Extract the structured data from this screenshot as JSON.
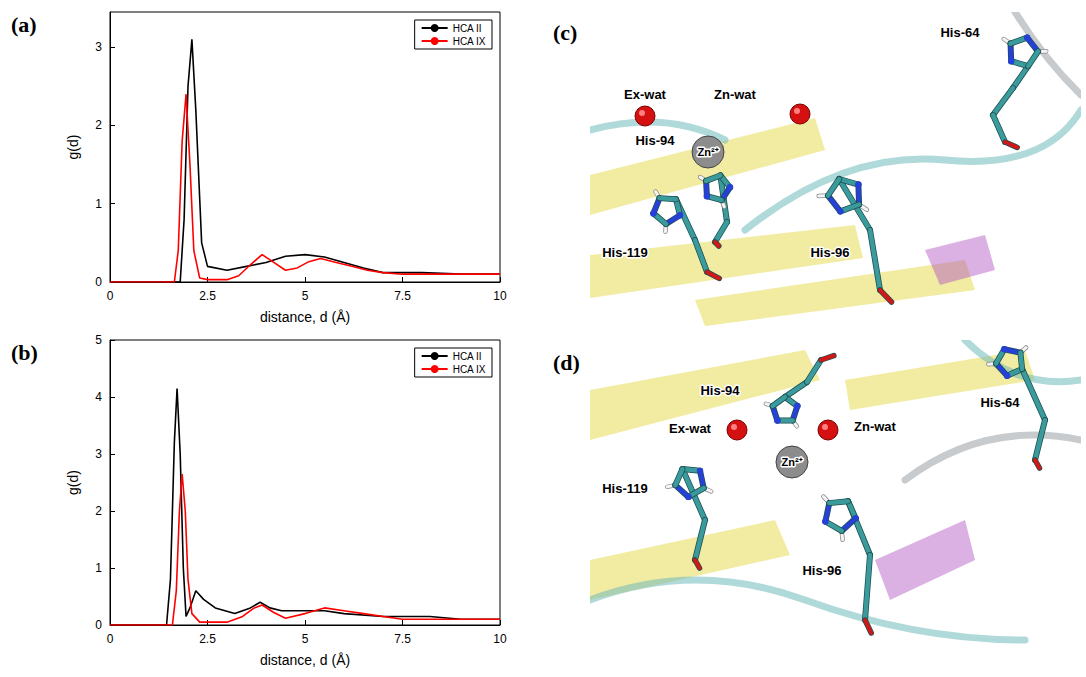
{
  "chart_data": [
    {
      "panel_label": "(a)",
      "type": "line",
      "x_label": "distance, d (Å)",
      "y_label": "g(d)",
      "xlim": [
        0,
        10
      ],
      "ylim": [
        0,
        3.45
      ],
      "xticks": [
        0,
        2.5,
        5,
        7.5,
        10
      ],
      "yticks": [
        0,
        1,
        2,
        3
      ],
      "grid": false,
      "legend": "upper right",
      "series": [
        {
          "name": "HCA II",
          "color": "#000000",
          "x": [
            0,
            1.8,
            1.9,
            2.0,
            2.1,
            2.2,
            2.35,
            2.5,
            3,
            3.5,
            4,
            4.5,
            5,
            5.5,
            6,
            6.5,
            7,
            8,
            9,
            10
          ],
          "values": [
            0,
            0,
            0.8,
            2.5,
            3.1,
            2.2,
            0.5,
            0.2,
            0.15,
            0.2,
            0.25,
            0.33,
            0.35,
            0.32,
            0.25,
            0.18,
            0.12,
            0.12,
            0.1,
            0.1
          ]
        },
        {
          "name": "HCA IX",
          "color": "#ff0000",
          "x": [
            0,
            1.65,
            1.75,
            1.85,
            1.95,
            2.05,
            2.15,
            2.3,
            2.5,
            3,
            3.3,
            3.6,
            3.9,
            4.2,
            4.5,
            4.8,
            5.1,
            5.4,
            5.8,
            6.2,
            6.6,
            7,
            7.5,
            8,
            9,
            10
          ],
          "values": [
            0,
            0,
            0.4,
            1.8,
            2.4,
            1.5,
            0.4,
            0.05,
            0.03,
            0.03,
            0.08,
            0.22,
            0.35,
            0.25,
            0.15,
            0.18,
            0.26,
            0.3,
            0.25,
            0.2,
            0.15,
            0.12,
            0.1,
            0.1,
            0.1,
            0.1
          ]
        }
      ]
    },
    {
      "panel_label": "(b)",
      "type": "line",
      "x_label": "distance, d (Å)",
      "y_label": "g(d)",
      "xlim": [
        0,
        10
      ],
      "ylim": [
        0,
        5
      ],
      "xticks": [
        0,
        2.5,
        5,
        7.5,
        10
      ],
      "yticks": [
        0,
        1,
        2,
        3,
        4,
        5
      ],
      "grid": false,
      "legend": "upper right",
      "series": [
        {
          "name": "HCA II",
          "color": "#000000",
          "x": [
            0,
            1.45,
            1.55,
            1.65,
            1.72,
            1.8,
            1.88,
            1.95,
            2.05,
            2.2,
            2.4,
            2.7,
            3.2,
            3.6,
            3.85,
            4.1,
            4.4,
            5,
            5.5,
            6,
            7,
            8.2,
            9,
            10
          ],
          "values": [
            0,
            0,
            0.8,
            3.2,
            4.15,
            3.0,
            1.0,
            0.15,
            0.3,
            0.6,
            0.45,
            0.3,
            0.2,
            0.3,
            0.4,
            0.3,
            0.25,
            0.25,
            0.25,
            0.2,
            0.15,
            0.15,
            0.1,
            0.1
          ]
        },
        {
          "name": "HCA IX",
          "color": "#ff0000",
          "x": [
            0,
            1.6,
            1.7,
            1.78,
            1.85,
            1.93,
            2.0,
            2.1,
            2.3,
            3,
            3.4,
            3.7,
            3.9,
            4.2,
            4.5,
            5,
            5.5,
            6,
            6.5,
            7.5,
            8.5,
            10
          ],
          "values": [
            0,
            0,
            0.6,
            2.0,
            2.65,
            2.0,
            0.8,
            0.2,
            0.05,
            0.05,
            0.15,
            0.3,
            0.35,
            0.22,
            0.12,
            0.2,
            0.3,
            0.25,
            0.2,
            0.1,
            0.1,
            0.1
          ]
        }
      ]
    }
  ],
  "images": [
    {
      "panel_label": "(c)",
      "labels": {
        "ex_water": "Ex-wat",
        "zn_water": "Zn-wat",
        "zinc": "Zn²⁺",
        "his94": "His-94",
        "his64": "His-64",
        "his119": "His-119",
        "his96": "His-96"
      }
    },
    {
      "panel_label": "(d)",
      "labels": {
        "ex_water": "Ex-wat",
        "zn_water": "Zn-wat",
        "zinc": "Zn²⁺",
        "his94": "His-94",
        "his64": "His-64",
        "his119": "His-119",
        "his96": "His-96"
      }
    }
  ]
}
